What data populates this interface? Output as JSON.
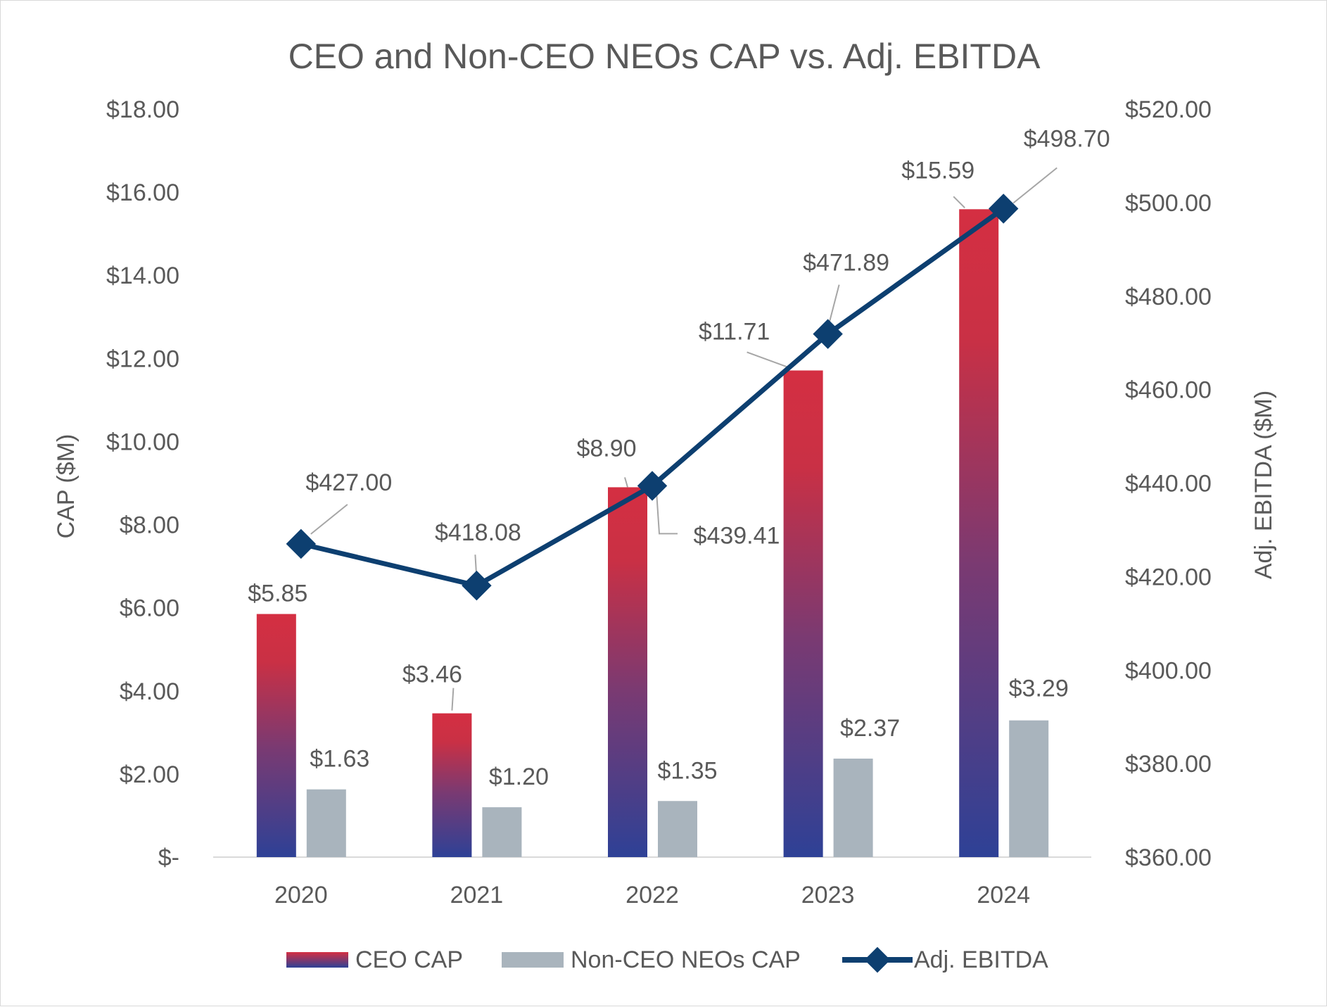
{
  "chart_data": {
    "type": "bar",
    "title": "CEO and Non-CEO NEOs CAP vs. Adj. EBITDA",
    "categories": [
      "2020",
      "2021",
      "2022",
      "2023",
      "2024"
    ],
    "y_left": {
      "label": "CAP ($M)",
      "ylim": [
        0,
        18
      ],
      "ticks": [
        0,
        2,
        4,
        6,
        8,
        10,
        12,
        14,
        16,
        18
      ],
      "tick_labels": [
        "$-",
        "$2.00",
        "$4.00",
        "$6.00",
        "$8.00",
        "$10.00",
        "$12.00",
        "$14.00",
        "$16.00",
        "$18.00"
      ]
    },
    "y_right": {
      "label": "Adj. EBITDA ($M)",
      "ylim": [
        360,
        520
      ],
      "ticks": [
        360,
        380,
        400,
        420,
        440,
        460,
        480,
        500,
        520
      ],
      "tick_labels": [
        "$360.00",
        "$380.00",
        "$400.00",
        "$420.00",
        "$440.00",
        "$460.00",
        "$480.00",
        "$500.00",
        "$520.00"
      ]
    },
    "series": [
      {
        "name": "CEO CAP",
        "kind": "bar",
        "axis": "left",
        "values": [
          5.85,
          3.46,
          8.9,
          11.71,
          15.59
        ],
        "labels": [
          "$5.85",
          "$3.46",
          "$8.90",
          "$11.71",
          "$15.59"
        ],
        "color_top": "#d42f42",
        "color_bottom": "#2e4196"
      },
      {
        "name": "Non-CEO NEOs CAP",
        "kind": "bar",
        "axis": "left",
        "values": [
          1.63,
          1.2,
          1.35,
          2.37,
          3.29
        ],
        "labels": [
          "$1.63",
          "$1.20",
          "$1.35",
          "$2.37",
          "$3.29"
        ],
        "color": "#a9b4bd"
      },
      {
        "name": "Adj. EBITDA",
        "kind": "line",
        "axis": "right",
        "marker": "diamond",
        "values": [
          427.0,
          418.08,
          439.41,
          471.89,
          498.7
        ],
        "labels": [
          "$427.00",
          "$418.08",
          "$439.41",
          "$471.89",
          "$498.70"
        ],
        "color": "#0d3f70"
      }
    ],
    "legend": {
      "position": "bottom",
      "items": [
        "CEO CAP",
        "Non-CEO NEOs CAP",
        "Adj. EBITDA"
      ]
    },
    "grid": false,
    "colors": {
      "text": "#595959",
      "axis_line": "#d9d9d9",
      "leader_line": "#a6a6a6"
    }
  }
}
